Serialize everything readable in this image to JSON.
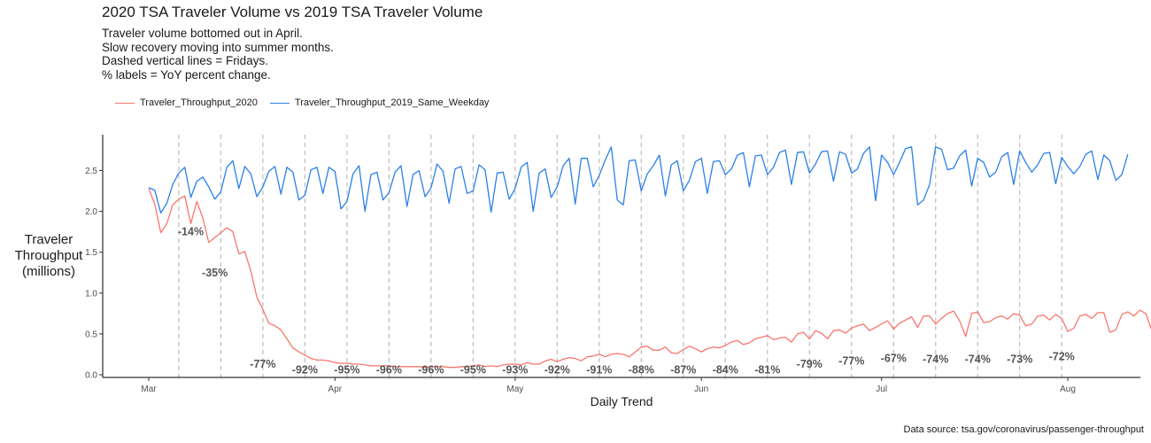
{
  "title": "2020 TSA Traveler Volume vs 2019 TSA Traveler Volume",
  "subtitle": [
    "Traveler volume bottomed out in April.",
    "Slow recovery moving into summer months.",
    "Dashed vertical lines = Fridays.",
    "% labels = YoY percent change."
  ],
  "caption": "Data source: tsa.gov/coronavirus/passenger-throughput",
  "chart_data": {
    "type": "line",
    "title": "2020 TSA Traveler Volume vs 2019 TSA Traveler Volume",
    "xlabel": "Daily Trend",
    "ylabel": [
      "Traveler",
      "Throughput",
      "(millions)"
    ],
    "x_start": "2020-03-01",
    "x_end": "2020-08-09",
    "ylim": [
      0,
      2.9
    ],
    "y_ticks": [
      0.0,
      0.5,
      1.0,
      1.5,
      2.0,
      2.5
    ],
    "y_tick_labels": [
      "0.0",
      "0.5",
      "1.0",
      "1.5",
      "2.0",
      "2.5"
    ],
    "x_ticks": [
      {
        "date": "2020-03-01",
        "label": "Mar"
      },
      {
        "date": "2020-04-01",
        "label": "Apr"
      },
      {
        "date": "2020-05-01",
        "label": "May"
      },
      {
        "date": "2020-06-01",
        "label": "Jun"
      },
      {
        "date": "2020-07-01",
        "label": "Jul"
      },
      {
        "date": "2020-08-01",
        "label": "Aug"
      }
    ],
    "grid": false,
    "legend_position": "top-left",
    "fridays": [
      "2020-03-06",
      "2020-03-13",
      "2020-03-20",
      "2020-03-27",
      "2020-04-03",
      "2020-04-10",
      "2020-04-17",
      "2020-04-24",
      "2020-05-01",
      "2020-05-08",
      "2020-05-15",
      "2020-05-22",
      "2020-05-29",
      "2020-06-05",
      "2020-06-12",
      "2020-06-19",
      "2020-06-26",
      "2020-07-03",
      "2020-07-10",
      "2020-07-17",
      "2020-07-24",
      "2020-07-31"
    ],
    "series": [
      {
        "name": "Traveler_Throughput_2020",
        "color": "#F8766D",
        "values": [
          2.28,
          2.09,
          1.74,
          1.85,
          2.08,
          2.15,
          2.19,
          1.85,
          2.12,
          1.92,
          1.62,
          1.68,
          1.74,
          1.8,
          1.75,
          1.48,
          1.51,
          1.27,
          0.95,
          0.8,
          0.63,
          0.6,
          0.55,
          0.44,
          0.33,
          0.28,
          0.24,
          0.2,
          0.18,
          0.18,
          0.17,
          0.15,
          0.14,
          0.14,
          0.13,
          0.13,
          0.12,
          0.11,
          0.11,
          0.11,
          0.11,
          0.1,
          0.1,
          0.1,
          0.1,
          0.1,
          0.09,
          0.1,
          0.1,
          0.1,
          0.09,
          0.09,
          0.1,
          0.1,
          0.11,
          0.12,
          0.1,
          0.11,
          0.1,
          0.12,
          0.13,
          0.13,
          0.12,
          0.15,
          0.13,
          0.13,
          0.17,
          0.19,
          0.16,
          0.19,
          0.21,
          0.2,
          0.17,
          0.22,
          0.23,
          0.25,
          0.22,
          0.25,
          0.26,
          0.25,
          0.22,
          0.28,
          0.34,
          0.35,
          0.3,
          0.3,
          0.34,
          0.27,
          0.26,
          0.31,
          0.35,
          0.32,
          0.28,
          0.32,
          0.34,
          0.33,
          0.36,
          0.4,
          0.42,
          0.37,
          0.39,
          0.44,
          0.46,
          0.48,
          0.43,
          0.45,
          0.46,
          0.4,
          0.5,
          0.52,
          0.44,
          0.54,
          0.51,
          0.44,
          0.54,
          0.55,
          0.51,
          0.57,
          0.6,
          0.62,
          0.54,
          0.58,
          0.62,
          0.66,
          0.56,
          0.63,
          0.67,
          0.71,
          0.58,
          0.72,
          0.72,
          0.62,
          0.69,
          0.75,
          0.78,
          0.66,
          0.47,
          0.75,
          0.77,
          0.64,
          0.65,
          0.7,
          0.72,
          0.68,
          0.75,
          0.73,
          0.6,
          0.62,
          0.72,
          0.73,
          0.67,
          0.74,
          0.69,
          0.53,
          0.57,
          0.72,
          0.74,
          0.69,
          0.76,
          0.76,
          0.52,
          0.55,
          0.74,
          0.77,
          0.72,
          0.79,
          0.75,
          0.54,
          0.58,
          0.72
        ],
        "value_unit": "millions"
      },
      {
        "name": "Traveler_Throughput_2019_Same_Weekday",
        "color": "#2A80EA",
        "values": [
          2.29,
          2.26,
          1.98,
          2.1,
          2.33,
          2.47,
          2.54,
          2.17,
          2.37,
          2.42,
          2.3,
          2.15,
          2.24,
          2.54,
          2.62,
          2.28,
          2.55,
          2.46,
          2.18,
          2.3,
          2.49,
          2.55,
          2.21,
          2.54,
          2.48,
          2.14,
          2.2,
          2.51,
          2.54,
          2.22,
          2.54,
          2.49,
          2.03,
          2.12,
          2.46,
          2.56,
          2.0,
          2.45,
          2.48,
          2.14,
          2.23,
          2.48,
          2.56,
          2.06,
          2.45,
          2.5,
          2.18,
          2.29,
          2.58,
          2.49,
          2.1,
          2.52,
          2.55,
          2.22,
          2.25,
          2.57,
          2.51,
          1.99,
          2.47,
          2.48,
          2.15,
          2.28,
          2.54,
          2.6,
          2.0,
          2.47,
          2.52,
          2.17,
          2.3,
          2.56,
          2.65,
          2.09,
          2.65,
          2.65,
          2.3,
          2.44,
          2.63,
          2.79,
          2.14,
          2.08,
          2.62,
          2.63,
          2.25,
          2.46,
          2.56,
          2.69,
          2.19,
          2.57,
          2.62,
          2.25,
          2.38,
          2.61,
          2.65,
          2.22,
          2.61,
          2.62,
          2.45,
          2.52,
          2.69,
          2.72,
          2.3,
          2.68,
          2.69,
          2.45,
          2.54,
          2.72,
          2.75,
          2.33,
          2.72,
          2.73,
          2.47,
          2.58,
          2.73,
          2.74,
          2.37,
          2.73,
          2.7,
          2.47,
          2.52,
          2.71,
          2.79,
          2.13,
          2.69,
          2.6,
          2.45,
          2.6,
          2.77,
          2.79,
          2.08,
          2.14,
          2.33,
          2.79,
          2.76,
          2.51,
          2.53,
          2.68,
          2.75,
          2.31,
          2.65,
          2.6,
          2.42,
          2.48,
          2.67,
          2.72,
          2.33,
          2.74,
          2.6,
          2.48,
          2.57,
          2.71,
          2.72,
          2.34,
          2.66,
          2.55,
          2.46,
          2.55,
          2.7,
          2.74,
          2.39,
          2.69,
          2.62,
          2.38,
          2.45,
          2.7
        ],
        "value_unit": "millions"
      }
    ],
    "annotations": [
      {
        "date": "2020-03-08",
        "y": 1.75,
        "text": "-14%"
      },
      {
        "date": "2020-03-12",
        "y": 1.25,
        "text": "-35%"
      },
      {
        "date": "2020-03-20",
        "y": 0.13,
        "text": "-77%"
      },
      {
        "date": "2020-03-27",
        "y": 0.06,
        "text": "-92%"
      },
      {
        "date": "2020-04-03",
        "y": 0.06,
        "text": "-95%"
      },
      {
        "date": "2020-04-10",
        "y": 0.06,
        "text": "-96%"
      },
      {
        "date": "2020-04-17",
        "y": 0.06,
        "text": "-96%"
      },
      {
        "date": "2020-04-24",
        "y": 0.06,
        "text": "-95%"
      },
      {
        "date": "2020-05-01",
        "y": 0.06,
        "text": "-93%"
      },
      {
        "date": "2020-05-08",
        "y": 0.06,
        "text": "-92%"
      },
      {
        "date": "2020-05-15",
        "y": 0.06,
        "text": "-91%"
      },
      {
        "date": "2020-05-22",
        "y": 0.06,
        "text": "-88%"
      },
      {
        "date": "2020-05-29",
        "y": 0.06,
        "text": "-87%"
      },
      {
        "date": "2020-06-05",
        "y": 0.06,
        "text": "-84%"
      },
      {
        "date": "2020-06-12",
        "y": 0.06,
        "text": "-81%"
      },
      {
        "date": "2020-06-19",
        "y": 0.13,
        "text": "-79%"
      },
      {
        "date": "2020-06-26",
        "y": 0.17,
        "text": "-77%"
      },
      {
        "date": "2020-07-03",
        "y": 0.2,
        "text": "-67%"
      },
      {
        "date": "2020-07-10",
        "y": 0.19,
        "text": "-74%"
      },
      {
        "date": "2020-07-17",
        "y": 0.19,
        "text": "-74%"
      },
      {
        "date": "2020-07-24",
        "y": 0.19,
        "text": "-73%"
      },
      {
        "date": "2020-07-31",
        "y": 0.22,
        "text": "-72%"
      }
    ]
  }
}
